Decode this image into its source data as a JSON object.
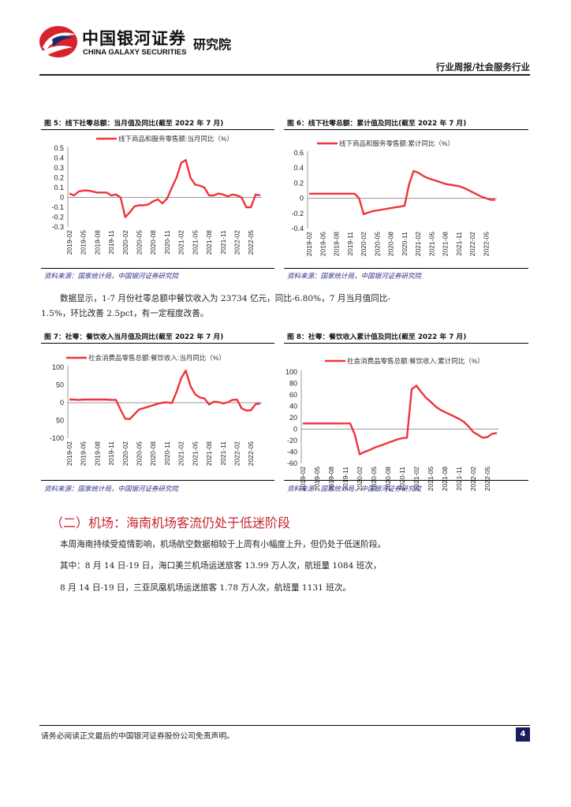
{
  "header": {
    "company_zh": "中国银河证券",
    "company_en": "CHINA GALAXY SECURITIES",
    "institute": "研究院",
    "report_category": "行业周报/社会服务行业"
  },
  "colors": {
    "line": "#f0323c",
    "logo_red": "#d8222c",
    "logo_navy": "#1b2a6b",
    "source_text": "#2d2f8a",
    "section_heading": "#c6262d"
  },
  "figures": [
    {
      "title": "图 5：线下社零总额：当月值及同比(截至 2022 年 7 月)",
      "source": "资料来源：国家统计局，中国银河证券研究院"
    },
    {
      "title": "图 6：线下社零总额：累计值及同比(截至 2022 年 7 月)",
      "source": "资料来源：国家统计局，中国银河证券研究院"
    },
    {
      "title": "图 7：社零：餐饮收入当月值及同比(截至 2022 年 7 月)",
      "source": "资料来源：国家统计局，中国银河证券研究院"
    },
    {
      "title": "图 8：社零：餐饮收入累计值及同比(截至 2022 年 7 月)",
      "source": "资料来源：国家统计局，中国银河证券研究院"
    }
  ],
  "text": {
    "para1_line1": "数据显示，1-7 月份社零总额中餐饮收入为 23734 亿元，同比-6.80%，7 月当月值同比-",
    "para1_line2": "1.5%，环比改善 2.5pct，有一定程度改善。",
    "section_heading": "（二）机场：海南机场客流仍处于低迷阶段",
    "para2": "本周海南持续受疫情影响，机场航空数据相较于上周有小幅度上升，但仍处于低迷阶段。",
    "para3": "其中：8 月 14 日-19 日，海口美兰机场运送旅客 13.99 万人次，航班量 1084 班次，",
    "para4": "8 月 14 日-19 日，三亚凤凰机场运送旅客 1.78 万人次，航班量 1131 班次。"
  },
  "footer": {
    "disclaimer": "请务必阅读正文最后的中国银河证券股份公司免责声明。",
    "page_number": "4"
  },
  "chart_data": [
    {
      "type": "line",
      "legend": "线下商品和服务零售额:当月同比（%）",
      "legend_position": "top",
      "grid": false,
      "ylim": [
        -0.3,
        0.5
      ],
      "yticks": [
        "0.5",
        "0.4",
        "0.3",
        "0.2",
        "0.1",
        "0",
        "-0.1",
        "-0.2",
        "-0.3"
      ],
      "xticks": [
        "2019-02",
        "2019-05",
        "2019-08",
        "2019-11",
        "2020-02",
        "2020-05",
        "2020-08",
        "2020-11",
        "2021-02",
        "2021-05",
        "2021-08",
        "2021-11",
        "2022-02",
        "2022-05"
      ],
      "x": [
        "2019-02",
        "2019-03",
        "2019-04",
        "2019-05",
        "2019-06",
        "2019-07",
        "2019-08",
        "2019-09",
        "2019-10",
        "2019-11",
        "2019-12",
        "2020-01",
        "2020-02",
        "2020-03",
        "2020-04",
        "2020-05",
        "2020-06",
        "2020-07",
        "2020-08",
        "2020-09",
        "2020-10",
        "2020-11",
        "2020-12",
        "2021-01",
        "2021-02",
        "2021-03",
        "2021-04",
        "2021-05",
        "2021-06",
        "2021-07",
        "2021-08",
        "2021-09",
        "2021-10",
        "2021-11",
        "2021-12",
        "2022-01",
        "2022-02",
        "2022-03",
        "2022-04",
        "2022-05",
        "2022-06",
        "2022-07"
      ],
      "values": [
        0.04,
        0.02,
        0.06,
        0.07,
        0.07,
        0.06,
        0.05,
        0.05,
        0.05,
        0.02,
        0.03,
        0.0,
        -0.2,
        -0.15,
        -0.09,
        -0.08,
        -0.08,
        -0.07,
        -0.04,
        -0.02,
        -0.06,
        -0.01,
        0.1,
        0.2,
        0.35,
        0.38,
        0.2,
        0.13,
        0.12,
        0.1,
        0.02,
        0.02,
        0.04,
        0.03,
        0.01,
        0.03,
        0.02,
        0.0,
        -0.1,
        -0.1,
        0.03,
        0.02
      ]
    },
    {
      "type": "line",
      "legend": "线下商品和服务零售额:累计同比（%）",
      "legend_position": "top",
      "grid": false,
      "ylim": [
        -0.4,
        0.6
      ],
      "yticks": [
        "0.6",
        "0.4",
        "0.2",
        "0",
        "-0.2",
        "-0.4"
      ],
      "xticks": [
        "2019-02",
        "2019-05",
        "2019-08",
        "2019-11",
        "2020-02",
        "2020-05",
        "2020-08",
        "2020-11",
        "2021-02",
        "2021-05",
        "2021-08",
        "2021-11",
        "2022-02",
        "2022-05"
      ],
      "x": [
        "2019-02",
        "2019-03",
        "2019-04",
        "2019-05",
        "2019-06",
        "2019-07",
        "2019-08",
        "2019-09",
        "2019-10",
        "2019-11",
        "2019-12",
        "2020-01",
        "2020-02",
        "2020-03",
        "2020-04",
        "2020-05",
        "2020-06",
        "2020-07",
        "2020-08",
        "2020-09",
        "2020-10",
        "2020-11",
        "2020-12",
        "2021-01",
        "2021-02",
        "2021-03",
        "2021-04",
        "2021-05",
        "2021-06",
        "2021-07",
        "2021-08",
        "2021-09",
        "2021-10",
        "2021-11",
        "2021-12",
        "2022-01",
        "2022-02",
        "2022-03",
        "2022-04",
        "2022-05",
        "2022-06",
        "2022-07"
      ],
      "values": [
        0.06,
        0.06,
        0.06,
        0.06,
        0.06,
        0.06,
        0.06,
        0.06,
        0.06,
        0.06,
        0.06,
        0.0,
        -0.21,
        -0.19,
        -0.17,
        -0.16,
        -0.15,
        -0.14,
        -0.13,
        -0.12,
        -0.11,
        -0.1,
        0.18,
        0.36,
        0.34,
        0.3,
        0.27,
        0.25,
        0.23,
        0.21,
        0.19,
        0.18,
        0.17,
        0.16,
        0.14,
        0.11,
        0.08,
        0.05,
        0.02,
        0.0,
        -0.02,
        -0.02
      ]
    },
    {
      "type": "line",
      "legend": "社会消费品零售总额:餐饮收入:当月同比（%）",
      "legend_position": "top",
      "grid": false,
      "ylim": [
        -100,
        100
      ],
      "yticks": [
        "100",
        "50",
        "0",
        "50",
        "-100"
      ],
      "xticks": [
        "2019-02",
        "2019-05",
        "2019-08",
        "2019-11",
        "2020-02",
        "2020-05",
        "2020-08",
        "2020-11",
        "2021-02",
        "2021-05",
        "2021-08",
        "2021-11",
        "2022-02",
        "2022-05"
      ],
      "x": [
        "2019-02",
        "2019-03",
        "2019-04",
        "2019-05",
        "2019-06",
        "2019-07",
        "2019-08",
        "2019-09",
        "2019-10",
        "2019-11",
        "2019-12",
        "2020-01",
        "2020-02",
        "2020-03",
        "2020-04",
        "2020-05",
        "2020-06",
        "2020-07",
        "2020-08",
        "2020-09",
        "2020-10",
        "2020-11",
        "2020-12",
        "2021-01",
        "2021-02",
        "2021-03",
        "2021-04",
        "2021-05",
        "2021-06",
        "2021-07",
        "2021-08",
        "2021-09",
        "2021-10",
        "2021-11",
        "2021-12",
        "2022-01",
        "2022-02",
        "2022-03",
        "2022-04",
        "2022-05",
        "2022-06",
        "2022-07"
      ],
      "values": [
        9,
        9,
        8,
        9,
        9,
        9,
        9,
        9,
        9,
        8,
        8,
        -20,
        -45,
        -46,
        -32,
        -19,
        -15,
        -11,
        -7,
        -3,
        0,
        1,
        -1,
        30,
        69,
        91,
        47,
        24,
        15,
        12,
        -5,
        3,
        2,
        -2,
        1,
        8,
        9,
        -16,
        -22,
        -21,
        -4,
        -2
      ]
    },
    {
      "type": "line",
      "legend": "社会消费品零售总额:餐饮收入:累计同比（%）",
      "legend_position": "top",
      "grid": false,
      "ylim": [
        -60,
        100
      ],
      "yticks": [
        "100",
        "80",
        "60",
        "40",
        "20",
        "0",
        "-20",
        "-40",
        "-60"
      ],
      "xticks": [
        "2019-02",
        "2019-05",
        "2019-08",
        "2019-11",
        "2020-02",
        "2020-05",
        "2020-08",
        "2020-11",
        "2021-02",
        "2021-05",
        "2021-08",
        "2021-11",
        "2022-02",
        "2022-05"
      ],
      "x": [
        "2019-02",
        "2019-03",
        "2019-04",
        "2019-05",
        "2019-06",
        "2019-07",
        "2019-08",
        "2019-09",
        "2019-10",
        "2019-11",
        "2019-12",
        "2020-01",
        "2020-02",
        "2020-03",
        "2020-04",
        "2020-05",
        "2020-06",
        "2020-07",
        "2020-08",
        "2020-09",
        "2020-10",
        "2020-11",
        "2020-12",
        "2021-01",
        "2021-02",
        "2021-03",
        "2021-04",
        "2021-05",
        "2021-06",
        "2021-07",
        "2021-08",
        "2021-09",
        "2021-10",
        "2021-11",
        "2021-12",
        "2022-01",
        "2022-02",
        "2022-03",
        "2022-04",
        "2022-05",
        "2022-06",
        "2022-07"
      ],
      "values": [
        10,
        10,
        10,
        10,
        10,
        10,
        10,
        10,
        10,
        10,
        10,
        -10,
        -44,
        -40,
        -37,
        -33,
        -30,
        -27,
        -24,
        -21,
        -18,
        -16,
        -15,
        70,
        76,
        65,
        55,
        48,
        40,
        34,
        30,
        26,
        22,
        18,
        13,
        5,
        -5,
        -10,
        -15,
        -14,
        -8,
        -7
      ]
    }
  ]
}
